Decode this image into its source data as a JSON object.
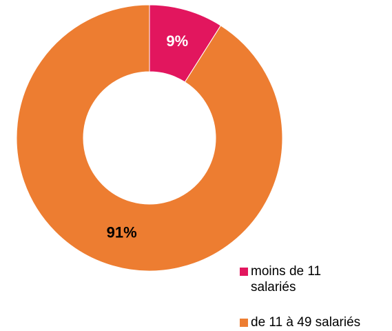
{
  "chart_data": {
    "type": "donut",
    "categories": [
      "moins de 11 salariés",
      "de 11 à 49 salariés"
    ],
    "values": [
      9,
      91
    ],
    "value_labels": [
      "9%",
      "91%"
    ],
    "colors": [
      "#e2165e",
      "#ed7d31"
    ],
    "label_colors": [
      "#ffffff",
      "#000000"
    ]
  }
}
